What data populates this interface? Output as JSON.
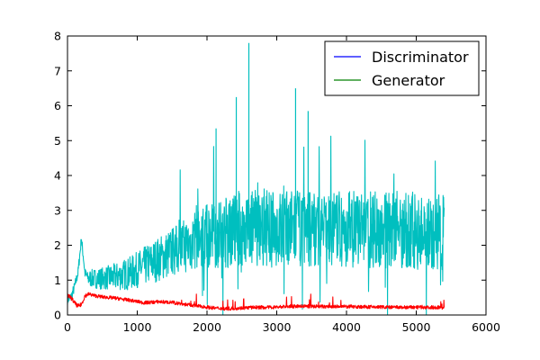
{
  "colors": {
    "discriminator_legend": "#0000ff",
    "generator_legend": "#008000",
    "discriminator_line": "#ff0000",
    "generator_line": "#00bfbf"
  },
  "chart_data": {
    "type": "line",
    "title": "",
    "xlabel": "",
    "ylabel": "",
    "xlim": [
      0,
      6000
    ],
    "ylim": [
      0,
      8
    ],
    "xticks": [
      0,
      1000,
      2000,
      3000,
      4000,
      5000,
      6000
    ],
    "yticks": [
      0,
      1,
      2,
      3,
      4,
      5,
      6,
      7,
      8
    ],
    "grid": false,
    "legend": {
      "position": "top-right",
      "entries": [
        "Discriminator",
        "Generator"
      ]
    },
    "series": [
      {
        "name": "Discriminator",
        "x": [
          0,
          50,
          100,
          150,
          200,
          250,
          300,
          400,
          500,
          700,
          900,
          1100,
          1300,
          1500,
          1700,
          1900,
          2100,
          2300,
          2500,
          2700,
          2900,
          3100,
          3300,
          3500,
          3700,
          3900,
          4100,
          4300,
          4500,
          4700,
          4900,
          5100,
          5300,
          5400
        ],
        "values": [
          0.55,
          0.5,
          0.35,
          0.25,
          0.3,
          0.55,
          0.6,
          0.55,
          0.52,
          0.48,
          0.42,
          0.35,
          0.38,
          0.36,
          0.3,
          0.25,
          0.2,
          0.18,
          0.2,
          0.22,
          0.22,
          0.24,
          0.25,
          0.25,
          0.24,
          0.24,
          0.24,
          0.23,
          0.23,
          0.22,
          0.22,
          0.22,
          0.22,
          0.21
        ]
      },
      {
        "name": "Generator",
        "x": [
          0,
          50,
          100,
          150,
          200,
          250,
          300,
          400,
          500,
          700,
          900,
          1100,
          1300,
          1500,
          1700,
          1900,
          2100,
          2300,
          2500,
          2700,
          2900,
          3100,
          3300,
          3500,
          3700,
          3900,
          4100,
          4300,
          4500,
          4700,
          4900,
          5100,
          5300,
          5400
        ],
        "values": [
          0.45,
          0.5,
          0.8,
          1.2,
          2.2,
          1.2,
          1.05,
          1.05,
          1.05,
          1.1,
          1.2,
          1.4,
          1.6,
          1.8,
          2.0,
          2.2,
          2.3,
          2.4,
          2.5,
          2.5,
          2.45,
          2.45,
          2.5,
          2.5,
          2.45,
          2.45,
          2.45,
          2.45,
          2.45,
          2.45,
          2.4,
          2.4,
          2.4,
          2.4
        ]
      }
    ],
    "annotations": [
      {
        "series": "Generator",
        "x": 2600,
        "y": 7.8
      },
      {
        "series": "Generator",
        "x": 2420,
        "y": 6.25
      },
      {
        "series": "Generator",
        "x": 3270,
        "y": 6.5
      },
      {
        "series": "Generator",
        "x": 2130,
        "y": 5.35
      },
      {
        "series": "Generator",
        "x": 3450,
        "y": 5.85
      }
    ]
  }
}
